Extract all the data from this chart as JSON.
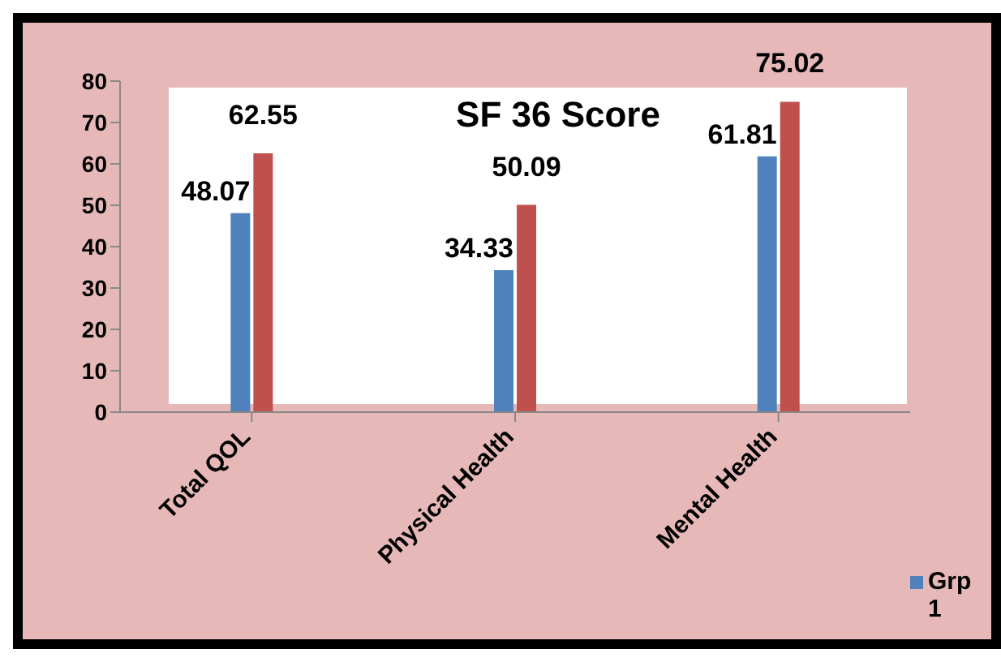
{
  "chart_data": {
    "type": "bar",
    "title": "SF 36 Score",
    "categories": [
      "Total QOL",
      "Physical Health",
      "Mental Health"
    ],
    "series": [
      {
        "name": "Grp 1",
        "color": "#4f81bd",
        "values": [
          48.07,
          34.33,
          61.81
        ]
      },
      {
        "color": "#c0504d",
        "values": [
          62.55,
          50.09,
          75.02
        ]
      }
    ],
    "ylim": [
      0,
      80
    ],
    "yticks": [
      0,
      10,
      20,
      30,
      40,
      50,
      60,
      70,
      80
    ],
    "data_labels": true,
    "grid": false,
    "legend": "right"
  }
}
